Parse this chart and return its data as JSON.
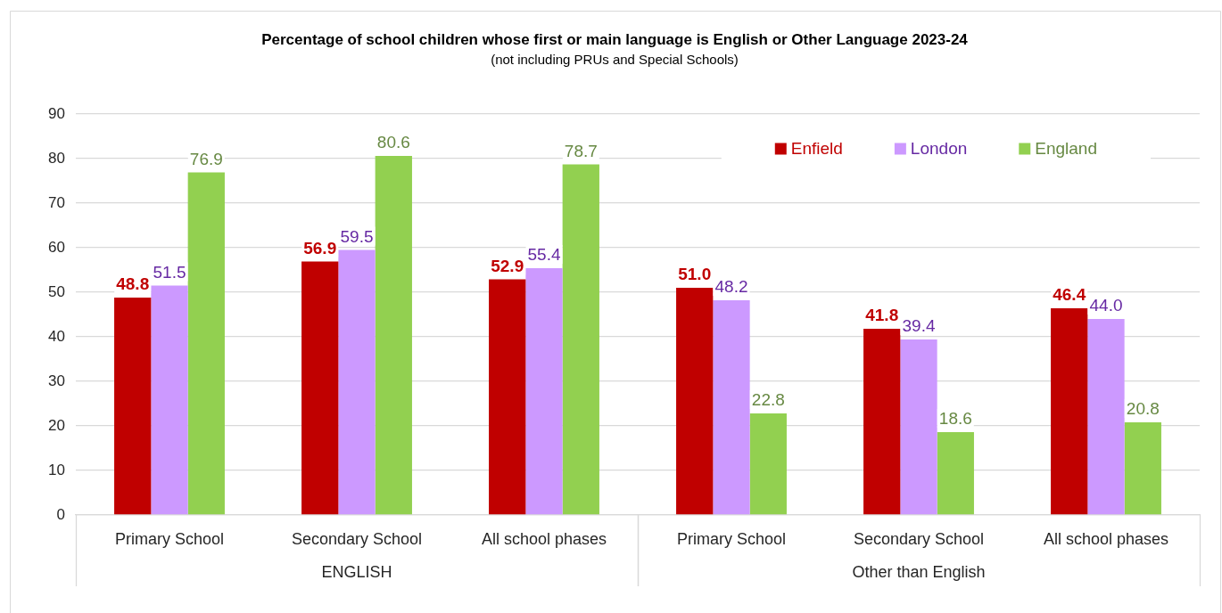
{
  "chart_data": {
    "type": "bar",
    "title": "Percentage of school children whose first or main language is English or Other Language 2023-24",
    "subtitle": "(not including PRUs and Special Schools)",
    "categories": [
      "Primary School",
      "Secondary School",
      "All school phases",
      "Primary School",
      "Secondary School",
      "All school phases"
    ],
    "series": [
      {
        "name": "Enfield",
        "color": "#c00000",
        "values": [
          48.8,
          56.9,
          52.9,
          51.0,
          41.8,
          46.4
        ],
        "value_labels": [
          "48.8",
          "56.9",
          "52.9",
          "51.0",
          "41.8",
          "46.4"
        ]
      },
      {
        "name": "London",
        "color": "#cc99ff",
        "values": [
          51.5,
          59.5,
          55.4,
          48.2,
          39.4,
          44.0
        ],
        "value_labels": [
          "51.5",
          "59.5",
          "55.4",
          "48.2",
          "39.4",
          "44.0"
        ]
      },
      {
        "name": "England",
        "color": "#92d050",
        "values": [
          76.9,
          80.6,
          78.7,
          22.8,
          18.6,
          20.8
        ],
        "value_labels": [
          "76.9",
          "80.6",
          "78.7",
          "22.8",
          "18.6",
          "20.8"
        ]
      }
    ],
    "ylim": [
      0,
      90
    ],
    "yticks": [
      0,
      10,
      20,
      30,
      40,
      50,
      60,
      70,
      80,
      90
    ],
    "grid": "y",
    "legend": "top right",
    "annotations": [
      "ENGLISH",
      "Other than English"
    ]
  }
}
